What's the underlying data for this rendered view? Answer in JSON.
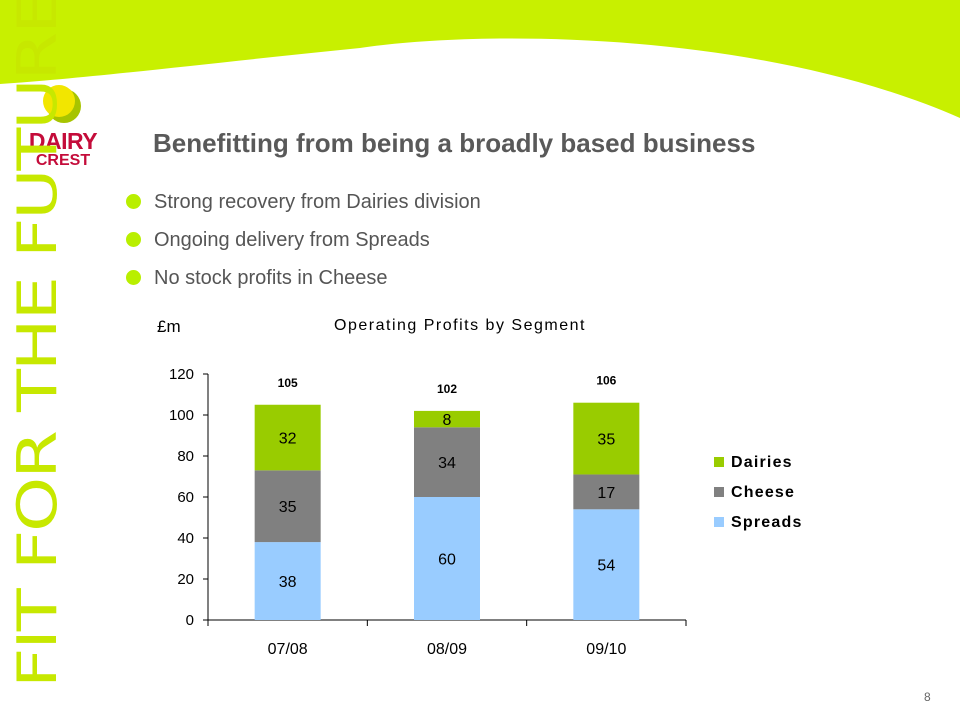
{
  "slide": {
    "title": "Benefitting from being a broadly based business",
    "bullets": [
      "Strong recovery from Dairies division",
      "Ongoing delivery from Spreads",
      "No stock profits in Cheese"
    ],
    "page_number": "8",
    "side_slogan": "FIT FOR THE FUTURE",
    "logo_text": [
      "DAIRY",
      "CREST"
    ],
    "colors": {
      "accent": "#c8f000",
      "bullet": "#b9ef00",
      "title": "#595959",
      "logo_red": "#c40c3a",
      "logo_yellow": "#f2e600"
    }
  },
  "chart_data": {
    "type": "bar",
    "stacked": true,
    "title": "Operating Profits by Segment",
    "ylabel": "£m",
    "xlabel": "",
    "ylim": [
      0,
      120
    ],
    "yticks": [
      0,
      20,
      40,
      60,
      80,
      100,
      120
    ],
    "categories": [
      "07/08",
      "08/09",
      "09/10"
    ],
    "series": [
      {
        "name": "Spreads",
        "values": [
          38,
          60,
          54
        ],
        "color": "#99ccff"
      },
      {
        "name": "Cheese",
        "values": [
          35,
          34,
          17
        ],
        "color": "#808080"
      },
      {
        "name": "Dairies",
        "values": [
          32,
          8,
          35
        ],
        "color": "#99cc00"
      }
    ],
    "totals": [
      105,
      102,
      106
    ],
    "legend": {
      "position": "right",
      "order": [
        "Dairies",
        "Cheese",
        "Spreads"
      ]
    },
    "grid": false
  }
}
